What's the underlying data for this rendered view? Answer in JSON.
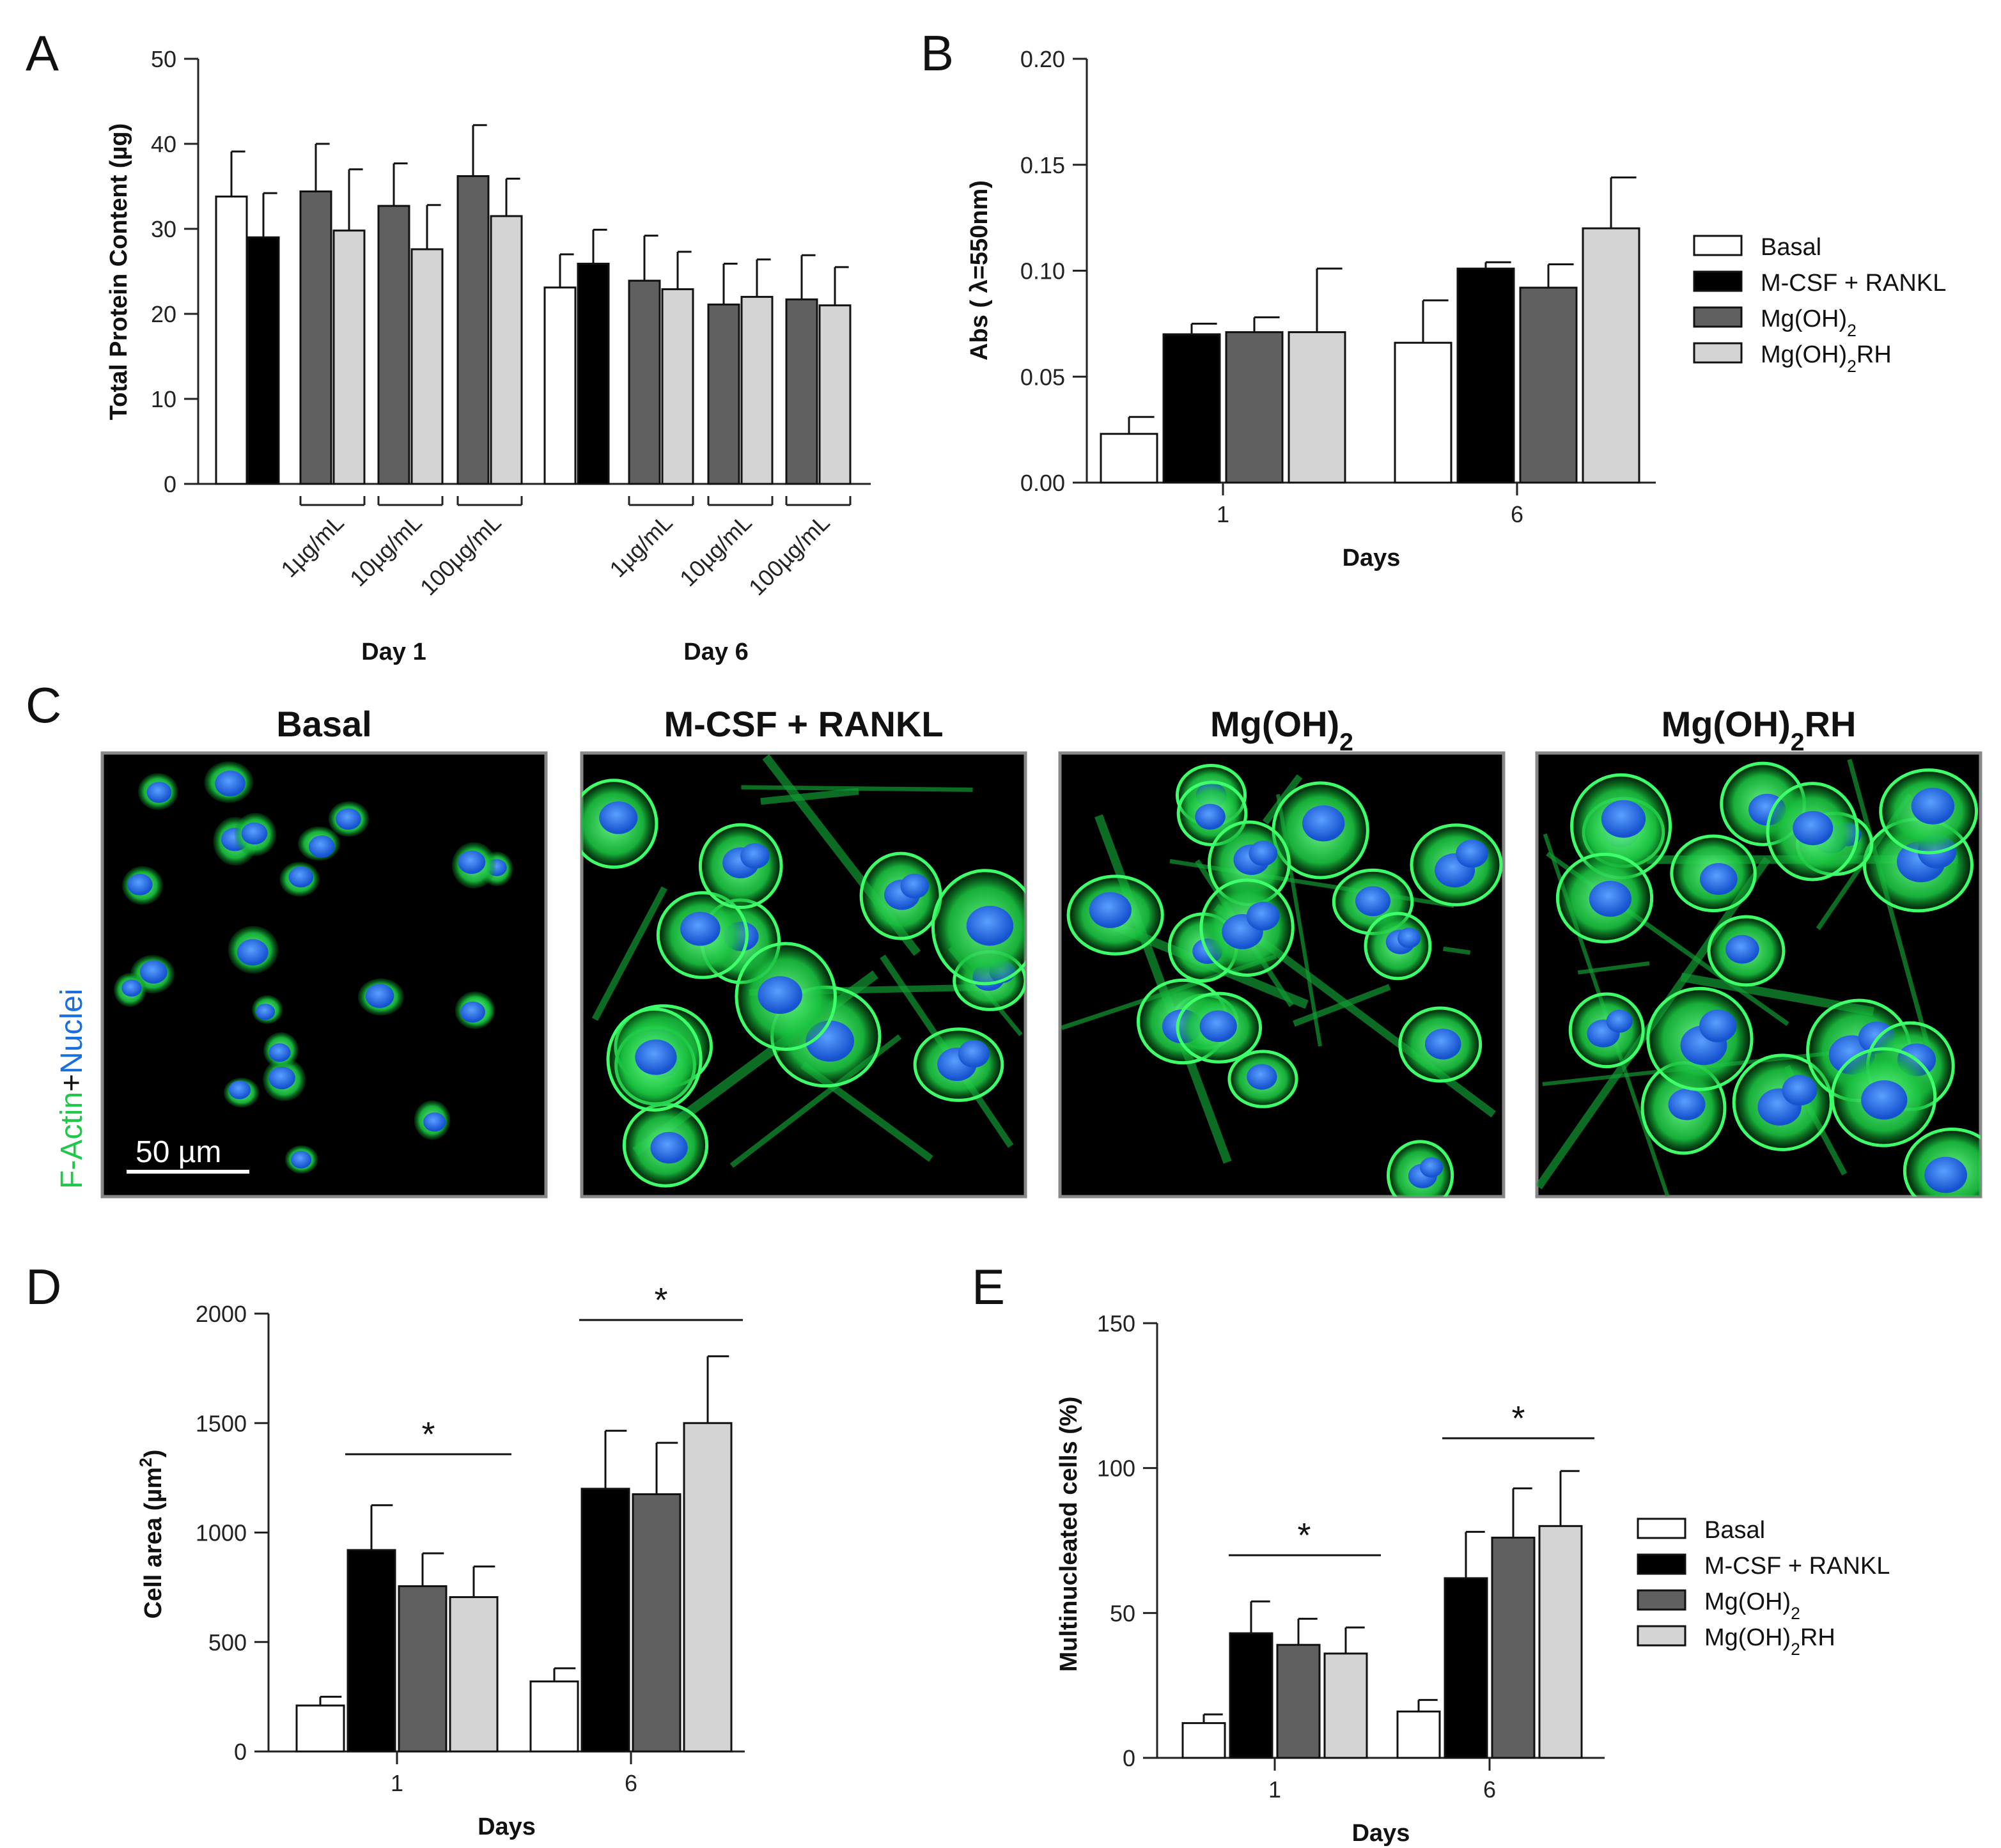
{
  "colors": {
    "basal": "#ffffff",
    "mcsf_rankl": "#000000",
    "mgoh2": "#606060",
    "mgoh2rh": "#d4d4d4",
    "factin": "#1fc74a",
    "nuclei": "#1a6fe0"
  },
  "legend_groups": [
    {
      "name": "Basal"
    },
    {
      "name": "M-CSF + RANKL"
    },
    {
      "name": "Mg(OH)",
      "sub": "2"
    },
    {
      "name": "Mg(OH)",
      "sub": "2",
      "suffix": "RH"
    }
  ],
  "chart_data": [
    {
      "panel": "A",
      "type": "bar",
      "ylabel": "Total Protein Content (µg)",
      "ylim": [
        0,
        50
      ],
      "yticks": [
        0,
        10,
        20,
        30,
        40,
        50
      ],
      "concentration_labels": [
        "1µg/mL",
        "10µg/mL",
        "100µg/mL"
      ],
      "day_labels": [
        "Day 1",
        "Day 6"
      ],
      "bars": [
        {
          "day": "Day 1",
          "group": "Basal",
          "value": 33.8,
          "error": 5.3
        },
        {
          "day": "Day 1",
          "group": "M-CSF + RANKL",
          "value": 29.0,
          "error": 5.2
        },
        {
          "day": "Day 1",
          "conc": "1µg/mL",
          "group": "Mg(OH)2",
          "value": 34.4,
          "error": 5.6
        },
        {
          "day": "Day 1",
          "conc": "1µg/mL",
          "group": "Mg(OH)2RH",
          "value": 29.8,
          "error": 7.2
        },
        {
          "day": "Day 1",
          "conc": "10µg/mL",
          "group": "Mg(OH)2",
          "value": 32.7,
          "error": 5.0
        },
        {
          "day": "Day 1",
          "conc": "10µg/mL",
          "group": "Mg(OH)2RH",
          "value": 27.6,
          "error": 5.2
        },
        {
          "day": "Day 1",
          "conc": "100µg/mL",
          "group": "Mg(OH)2",
          "value": 36.2,
          "error": 6.0
        },
        {
          "day": "Day 1",
          "conc": "100µg/mL",
          "group": "Mg(OH)2RH",
          "value": 31.5,
          "error": 4.4
        },
        {
          "day": "Day 6",
          "group": "Basal",
          "value": 23.1,
          "error": 3.9
        },
        {
          "day": "Day 6",
          "group": "M-CSF + RANKL",
          "value": 25.9,
          "error": 4.0
        },
        {
          "day": "Day 6",
          "conc": "1µg/mL",
          "group": "Mg(OH)2",
          "value": 23.9,
          "error": 5.3
        },
        {
          "day": "Day 6",
          "conc": "1µg/mL",
          "group": "Mg(OH)2RH",
          "value": 22.9,
          "error": 4.4
        },
        {
          "day": "Day 6",
          "conc": "10µg/mL",
          "group": "Mg(OH)2",
          "value": 21.1,
          "error": 4.8
        },
        {
          "day": "Day 6",
          "conc": "10µg/mL",
          "group": "Mg(OH)2RH",
          "value": 22.0,
          "error": 4.4
        },
        {
          "day": "Day 6",
          "conc": "100µg/mL",
          "group": "Mg(OH)2",
          "value": 21.7,
          "error": 5.2
        },
        {
          "day": "Day 6",
          "conc": "100µg/mL",
          "group": "Mg(OH)2RH",
          "value": 21.0,
          "error": 4.5
        }
      ]
    },
    {
      "panel": "B",
      "type": "bar",
      "xlabel": "Days",
      "ylabel": "Abs ( λ=550nm)",
      "ylim": [
        0,
        0.2
      ],
      "yticks": [
        "0.00",
        "0.05",
        "0.10",
        "0.15",
        "0.20"
      ],
      "categories": [
        "1",
        "6"
      ],
      "series": [
        {
          "name": "Basal",
          "values": [
            0.023,
            0.066
          ],
          "errors": [
            0.008,
            0.02
          ]
        },
        {
          "name": "M-CSF + RANKL",
          "values": [
            0.07,
            0.101
          ],
          "errors": [
            0.005,
            0.003
          ]
        },
        {
          "name": "Mg(OH)2",
          "values": [
            0.071,
            0.092
          ],
          "errors": [
            0.007,
            0.011
          ]
        },
        {
          "name": "Mg(OH)2RH",
          "values": [
            0.071,
            0.12
          ],
          "errors": [
            0.03,
            0.024
          ]
        }
      ]
    },
    {
      "panel": "D",
      "type": "bar",
      "xlabel": "Days",
      "ylabel": "Cell area (µm",
      "ylabel_sup": "2",
      "ylabel_end": ")",
      "ylim": [
        0,
        2000
      ],
      "yticks": [
        0,
        500,
        1000,
        1500,
        2000
      ],
      "categories": [
        "1",
        "6"
      ],
      "series": [
        {
          "name": "Basal",
          "values": [
            210,
            320
          ],
          "errors": [
            40,
            60
          ]
        },
        {
          "name": "M-CSF + RANKL",
          "values": [
            920,
            1200
          ],
          "errors": [
            205,
            265
          ]
        },
        {
          "name": "Mg(OH)2",
          "values": [
            755,
            1175
          ],
          "errors": [
            150,
            235
          ]
        },
        {
          "name": "Mg(OH)2RH",
          "values": [
            705,
            1500
          ],
          "errors": [
            140,
            305
          ]
        }
      ],
      "significance": "*"
    },
    {
      "panel": "E",
      "type": "bar",
      "xlabel": "Days",
      "ylabel": "Multinucleated cells (%)",
      "ylim": [
        0,
        150
      ],
      "yticks": [
        0,
        50,
        100,
        150
      ],
      "categories": [
        "1",
        "6"
      ],
      "series": [
        {
          "name": "Basal",
          "values": [
            12,
            16
          ],
          "errors": [
            3,
            4
          ]
        },
        {
          "name": "M-CSF + RANKL",
          "values": [
            43,
            62
          ],
          "errors": [
            11,
            16
          ]
        },
        {
          "name": "Mg(OH)2",
          "values": [
            39,
            76
          ],
          "errors": [
            9,
            17
          ]
        },
        {
          "name": "Mg(OH)2RH",
          "values": [
            36,
            80
          ],
          "errors": [
            9,
            19
          ]
        }
      ],
      "significance": "*"
    }
  ],
  "panel_c": {
    "side_label_a": "F-Actin",
    "side_label_plus": "+",
    "side_label_b": "Nuclei",
    "scale_bar": "50 µm",
    "images": [
      {
        "title": "Basal"
      },
      {
        "title": "M-CSF + RANKL"
      },
      {
        "title": "Mg(OH)",
        "sub": "2"
      },
      {
        "title": "Mg(OH)",
        "sub": "2",
        "suffix": "RH"
      }
    ]
  },
  "panel_letters": [
    "A",
    "B",
    "C",
    "D",
    "E"
  ]
}
